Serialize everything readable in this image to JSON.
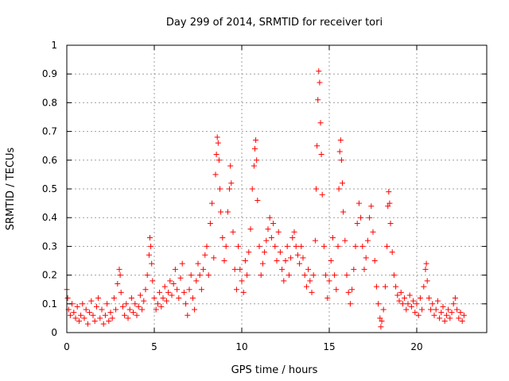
{
  "chart_data": {
    "type": "scatter",
    "title": "Day 299 of 2014, SRMTID for receiver tori",
    "xlabel": "GPS time / hours",
    "ylabel": "SRMTID / TECUs",
    "xlim": [
      0,
      24
    ],
    "ylim": [
      0,
      1
    ],
    "grid": true,
    "marker": "+",
    "color": "#ff0000",
    "x_ticks": [
      {
        "value": 0,
        "label": "0"
      },
      {
        "value": 5,
        "label": "5"
      },
      {
        "value": 10,
        "label": "10"
      },
      {
        "value": 15,
        "label": "15"
      },
      {
        "value": 20,
        "label": "20"
      }
    ],
    "y_ticks": [
      {
        "value": 0,
        "label": "0"
      },
      {
        "value": 0.1,
        "label": "0.1"
      },
      {
        "value": 0.2,
        "label": "0.2"
      },
      {
        "value": 0.3,
        "label": "0.3"
      },
      {
        "value": 0.4,
        "label": "0.4"
      },
      {
        "value": 0.5,
        "label": "0.5"
      },
      {
        "value": 0.6,
        "label": "0.6"
      },
      {
        "value": 0.7,
        "label": "0.7"
      },
      {
        "value": 0.8,
        "label": "0.8"
      },
      {
        "value": 0.9,
        "label": "0.9"
      },
      {
        "value": 1,
        "label": "1"
      }
    ],
    "points": [
      [
        0.0,
        0.15
      ],
      [
        0.05,
        0.12
      ],
      [
        0.1,
        0.08
      ],
      [
        0.2,
        0.06
      ],
      [
        0.3,
        0.1
      ],
      [
        0.4,
        0.07
      ],
      [
        0.5,
        0.05
      ],
      [
        0.6,
        0.09
      ],
      [
        0.7,
        0.04
      ],
      [
        0.8,
        0.06
      ],
      [
        0.9,
        0.1
      ],
      [
        1.0,
        0.05
      ],
      [
        1.1,
        0.08
      ],
      [
        1.2,
        0.03
      ],
      [
        1.3,
        0.07
      ],
      [
        1.4,
        0.11
      ],
      [
        1.5,
        0.06
      ],
      [
        1.6,
        0.04
      ],
      [
        1.7,
        0.09
      ],
      [
        1.8,
        0.12
      ],
      [
        1.9,
        0.05
      ],
      [
        2.0,
        0.08
      ],
      [
        2.1,
        0.03
      ],
      [
        2.2,
        0.06
      ],
      [
        2.3,
        0.1
      ],
      [
        2.4,
        0.04
      ],
      [
        2.5,
        0.07
      ],
      [
        2.6,
        0.05
      ],
      [
        2.7,
        0.12
      ],
      [
        2.8,
        0.08
      ],
      [
        2.9,
        0.17
      ],
      [
        3.0,
        0.22
      ],
      [
        3.05,
        0.2
      ],
      [
        3.1,
        0.14
      ],
      [
        3.2,
        0.09
      ],
      [
        3.3,
        0.06
      ],
      [
        3.4,
        0.1
      ],
      [
        3.5,
        0.05
      ],
      [
        3.6,
        0.08
      ],
      [
        3.7,
        0.12
      ],
      [
        3.8,
        0.07
      ],
      [
        3.9,
        0.1
      ],
      [
        4.0,
        0.06
      ],
      [
        4.1,
        0.09
      ],
      [
        4.2,
        0.13
      ],
      [
        4.3,
        0.08
      ],
      [
        4.4,
        0.11
      ],
      [
        4.5,
        0.15
      ],
      [
        4.6,
        0.2
      ],
      [
        4.7,
        0.27
      ],
      [
        4.75,
        0.33
      ],
      [
        4.8,
        0.3
      ],
      [
        4.85,
        0.24
      ],
      [
        4.9,
        0.18
      ],
      [
        5.0,
        0.12
      ],
      [
        5.1,
        0.08
      ],
      [
        5.2,
        0.1
      ],
      [
        5.3,
        0.14
      ],
      [
        5.4,
        0.09
      ],
      [
        5.5,
        0.12
      ],
      [
        5.6,
        0.16
      ],
      [
        5.7,
        0.11
      ],
      [
        5.8,
        0.14
      ],
      [
        5.9,
        0.18
      ],
      [
        6.0,
        0.13
      ],
      [
        6.1,
        0.17
      ],
      [
        6.2,
        0.22
      ],
      [
        6.3,
        0.15
      ],
      [
        6.4,
        0.12
      ],
      [
        6.5,
        0.19
      ],
      [
        6.6,
        0.24
      ],
      [
        6.7,
        0.14
      ],
      [
        6.8,
        0.1
      ],
      [
        6.9,
        0.06
      ],
      [
        7.0,
        0.15
      ],
      [
        7.1,
        0.2
      ],
      [
        7.2,
        0.12
      ],
      [
        7.3,
        0.08
      ],
      [
        7.4,
        0.18
      ],
      [
        7.5,
        0.24
      ],
      [
        7.6,
        0.2
      ],
      [
        7.7,
        0.15
      ],
      [
        7.8,
        0.22
      ],
      [
        7.9,
        0.27
      ],
      [
        8.0,
        0.3
      ],
      [
        8.1,
        0.2
      ],
      [
        8.2,
        0.38
      ],
      [
        8.3,
        0.45
      ],
      [
        8.4,
        0.26
      ],
      [
        8.5,
        0.55
      ],
      [
        8.55,
        0.62
      ],
      [
        8.6,
        0.68
      ],
      [
        8.65,
        0.66
      ],
      [
        8.7,
        0.6
      ],
      [
        8.75,
        0.5
      ],
      [
        8.8,
        0.42
      ],
      [
        8.9,
        0.33
      ],
      [
        9.0,
        0.25
      ],
      [
        9.1,
        0.3
      ],
      [
        9.2,
        0.42
      ],
      [
        9.3,
        0.5
      ],
      [
        9.35,
        0.58
      ],
      [
        9.4,
        0.52
      ],
      [
        9.5,
        0.35
      ],
      [
        9.6,
        0.22
      ],
      [
        9.7,
        0.15
      ],
      [
        9.8,
        0.3
      ],
      [
        9.9,
        0.22
      ],
      [
        10.0,
        0.18
      ],
      [
        10.1,
        0.14
      ],
      [
        10.2,
        0.25
      ],
      [
        10.3,
        0.2
      ],
      [
        10.4,
        0.28
      ],
      [
        10.5,
        0.36
      ],
      [
        10.6,
        0.5
      ],
      [
        10.7,
        0.58
      ],
      [
        10.75,
        0.64
      ],
      [
        10.8,
        0.67
      ],
      [
        10.85,
        0.6
      ],
      [
        10.9,
        0.46
      ],
      [
        11.0,
        0.3
      ],
      [
        11.1,
        0.2
      ],
      [
        11.2,
        0.24
      ],
      [
        11.3,
        0.28
      ],
      [
        11.4,
        0.32
      ],
      [
        11.5,
        0.36
      ],
      [
        11.6,
        0.4
      ],
      [
        11.7,
        0.33
      ],
      [
        11.8,
        0.38
      ],
      [
        11.9,
        0.3
      ],
      [
        12.0,
        0.25
      ],
      [
        12.1,
        0.35
      ],
      [
        12.2,
        0.28
      ],
      [
        12.3,
        0.22
      ],
      [
        12.4,
        0.18
      ],
      [
        12.5,
        0.25
      ],
      [
        12.6,
        0.3
      ],
      [
        12.7,
        0.2
      ],
      [
        12.8,
        0.26
      ],
      [
        12.9,
        0.33
      ],
      [
        13.0,
        0.35
      ],
      [
        13.1,
        0.3
      ],
      [
        13.2,
        0.27
      ],
      [
        13.3,
        0.24
      ],
      [
        13.4,
        0.3
      ],
      [
        13.5,
        0.26
      ],
      [
        13.6,
        0.2
      ],
      [
        13.7,
        0.16
      ],
      [
        13.8,
        0.22
      ],
      [
        13.9,
        0.18
      ],
      [
        14.0,
        0.14
      ],
      [
        14.1,
        0.2
      ],
      [
        14.2,
        0.32
      ],
      [
        14.25,
        0.5
      ],
      [
        14.3,
        0.65
      ],
      [
        14.35,
        0.81
      ],
      [
        14.4,
        0.91
      ],
      [
        14.45,
        0.87
      ],
      [
        14.5,
        0.73
      ],
      [
        14.55,
        0.62
      ],
      [
        14.6,
        0.48
      ],
      [
        14.7,
        0.3
      ],
      [
        14.8,
        0.2
      ],
      [
        14.9,
        0.12
      ],
      [
        15.0,
        0.18
      ],
      [
        15.1,
        0.25
      ],
      [
        15.2,
        0.33
      ],
      [
        15.3,
        0.2
      ],
      [
        15.4,
        0.15
      ],
      [
        15.5,
        0.3
      ],
      [
        15.55,
        0.5
      ],
      [
        15.6,
        0.63
      ],
      [
        15.65,
        0.67
      ],
      [
        15.7,
        0.6
      ],
      [
        15.75,
        0.52
      ],
      [
        15.8,
        0.42
      ],
      [
        15.9,
        0.32
      ],
      [
        16.0,
        0.2
      ],
      [
        16.1,
        0.14
      ],
      [
        16.2,
        0.1
      ],
      [
        16.3,
        0.15
      ],
      [
        16.4,
        0.22
      ],
      [
        16.5,
        0.3
      ],
      [
        16.6,
        0.38
      ],
      [
        16.7,
        0.45
      ],
      [
        16.8,
        0.4
      ],
      [
        16.9,
        0.3
      ],
      [
        17.0,
        0.22
      ],
      [
        17.1,
        0.26
      ],
      [
        17.2,
        0.32
      ],
      [
        17.3,
        0.4
      ],
      [
        17.4,
        0.44
      ],
      [
        17.5,
        0.35
      ],
      [
        17.6,
        0.25
      ],
      [
        17.7,
        0.16
      ],
      [
        17.8,
        0.1
      ],
      [
        17.9,
        0.05
      ],
      [
        17.95,
        0.02
      ],
      [
        18.0,
        0.04
      ],
      [
        18.1,
        0.08
      ],
      [
        18.2,
        0.16
      ],
      [
        18.3,
        0.3
      ],
      [
        18.35,
        0.44
      ],
      [
        18.4,
        0.49
      ],
      [
        18.45,
        0.45
      ],
      [
        18.5,
        0.38
      ],
      [
        18.6,
        0.28
      ],
      [
        18.7,
        0.2
      ],
      [
        18.8,
        0.16
      ],
      [
        18.9,
        0.13
      ],
      [
        19.0,
        0.11
      ],
      [
        19.1,
        0.14
      ],
      [
        19.2,
        0.1
      ],
      [
        19.3,
        0.12
      ],
      [
        19.4,
        0.08
      ],
      [
        19.5,
        0.1
      ],
      [
        19.6,
        0.13
      ],
      [
        19.7,
        0.09
      ],
      [
        19.8,
        0.11
      ],
      [
        19.9,
        0.07
      ],
      [
        20.0,
        0.1
      ],
      [
        20.1,
        0.06
      ],
      [
        20.2,
        0.12
      ],
      [
        20.3,
        0.08
      ],
      [
        20.4,
        0.16
      ],
      [
        20.5,
        0.22
      ],
      [
        20.55,
        0.24
      ],
      [
        20.6,
        0.18
      ],
      [
        20.7,
        0.12
      ],
      [
        20.8,
        0.08
      ],
      [
        20.9,
        0.1
      ],
      [
        21.0,
        0.06
      ],
      [
        21.1,
        0.08
      ],
      [
        21.2,
        0.11
      ],
      [
        21.3,
        0.05
      ],
      [
        21.4,
        0.07
      ],
      [
        21.5,
        0.09
      ],
      [
        21.6,
        0.04
      ],
      [
        21.7,
        0.06
      ],
      [
        21.8,
        0.08
      ],
      [
        21.9,
        0.05
      ],
      [
        22.0,
        0.07
      ],
      [
        22.1,
        0.1
      ],
      [
        22.2,
        0.12
      ],
      [
        22.3,
        0.08
      ],
      [
        22.4,
        0.05
      ],
      [
        22.5,
        0.07
      ],
      [
        22.6,
        0.04
      ],
      [
        22.7,
        0.06
      ]
    ]
  }
}
